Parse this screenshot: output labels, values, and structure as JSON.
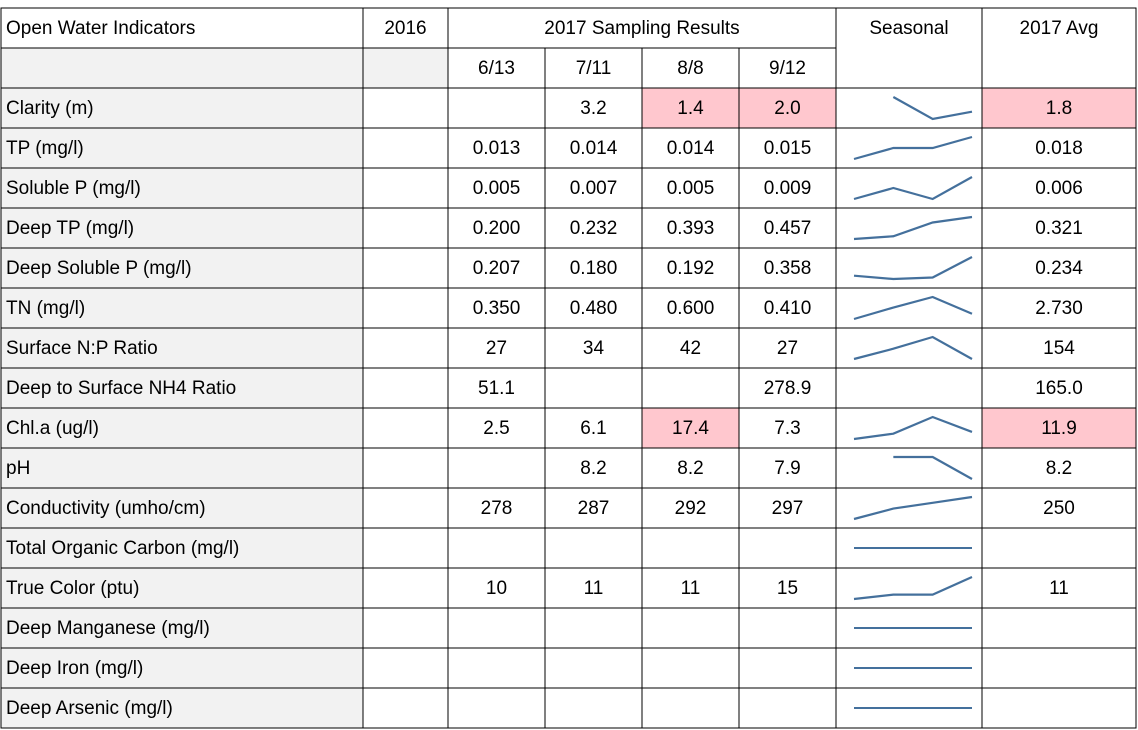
{
  "table": {
    "header": {
      "indicator": "Open Water Indicators",
      "prior": "2016",
      "sampling": "2017 Sampling Results",
      "dates": [
        "6/13",
        "7/11",
        "8/8",
        "9/12"
      ],
      "seasonal": "Seasonal",
      "average": "2017 Avg"
    },
    "rows": [
      {
        "label": "Clarity (m)",
        "samples": [
          null,
          "3.2",
          "1.4",
          "2.0"
        ],
        "avg": "1.8",
        "highlight": [
          2,
          3
        ],
        "avg_highlight": true
      },
      {
        "label": "TP (mg/l)",
        "samples": [
          "0.013",
          "0.014",
          "0.014",
          "0.015"
        ],
        "avg": "0.018"
      },
      {
        "label": "Soluble P (mg/l)",
        "samples": [
          "0.005",
          "0.007",
          "0.005",
          "0.009"
        ],
        "avg": "0.006"
      },
      {
        "label": "Deep TP (mg/l)",
        "samples": [
          "0.200",
          "0.232",
          "0.393",
          "0.457"
        ],
        "avg": "0.321"
      },
      {
        "label": "Deep Soluble P (mg/l)",
        "samples": [
          "0.207",
          "0.180",
          "0.192",
          "0.358"
        ],
        "avg": "0.234"
      },
      {
        "label": "TN (mg/l)",
        "samples": [
          "0.350",
          "0.480",
          "0.600",
          "0.410"
        ],
        "avg": "2.730"
      },
      {
        "label": "Surface N:P Ratio",
        "samples": [
          "27",
          "34",
          "42",
          "27"
        ],
        "avg": "154"
      },
      {
        "label": "Deep to Surface NH4 Ratio",
        "samples": [
          "51.1",
          null,
          null,
          "278.9"
        ],
        "avg": "165.0"
      },
      {
        "label": "Chl.a (ug/l)",
        "samples": [
          "2.5",
          "6.1",
          "17.4",
          "7.3"
        ],
        "avg": "11.9",
        "highlight": [
          2
        ],
        "avg_highlight": true
      },
      {
        "label": "pH",
        "samples": [
          null,
          "8.2",
          "8.2",
          "7.9"
        ],
        "avg": "8.2"
      },
      {
        "label": "Conductivity (umho/cm)",
        "samples": [
          "278",
          "287",
          "292",
          "297"
        ],
        "avg": "250"
      },
      {
        "label": "Total Organic Carbon (mg/l)",
        "samples": [
          null,
          null,
          null,
          null
        ],
        "avg": null
      },
      {
        "label": "True Color (ptu)",
        "samples": [
          "10",
          "11",
          "11",
          "15"
        ],
        "avg": "11"
      },
      {
        "label": "Deep Manganese (mg/l)",
        "samples": [
          null,
          null,
          null,
          null
        ],
        "avg": null
      },
      {
        "label": "Deep Iron (mg/l)",
        "samples": [
          null,
          null,
          null,
          null
        ],
        "avg": null
      },
      {
        "label": "Deep Arsenic (mg/l)",
        "samples": [
          null,
          null,
          null,
          null
        ],
        "avg": null
      }
    ]
  }
}
